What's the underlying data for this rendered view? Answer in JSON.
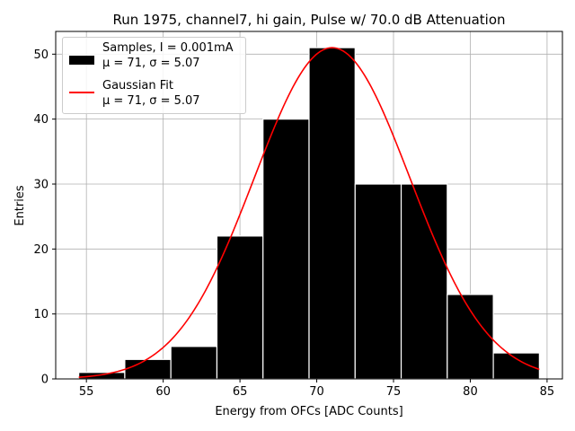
{
  "chart_data": {
    "type": "bar",
    "title": "Run 1975, channel7, hi gain, Pulse w/ 70.0 dB Attenuation",
    "xlabel": "Energy from OFCs [ADC Counts]",
    "ylabel": "Entries",
    "xlim": [
      53,
      86
    ],
    "ylim": [
      0,
      53.5
    ],
    "xticks": [
      55,
      60,
      65,
      70,
      75,
      80,
      85
    ],
    "yticks": [
      0,
      10,
      20,
      30,
      40,
      50
    ],
    "grid": true,
    "bins": [
      {
        "left": 54.5,
        "right": 57.5,
        "value": 1
      },
      {
        "left": 57.5,
        "right": 60.5,
        "value": 3
      },
      {
        "left": 60.5,
        "right": 63.5,
        "value": 5
      },
      {
        "left": 63.5,
        "right": 66.5,
        "value": 22
      },
      {
        "left": 66.5,
        "right": 69.5,
        "value": 40
      },
      {
        "left": 69.5,
        "right": 72.5,
        "value": 51
      },
      {
        "left": 72.5,
        "right": 75.5,
        "value": 30
      },
      {
        "left": 75.5,
        "right": 78.5,
        "value": 30
      },
      {
        "left": 78.5,
        "right": 81.5,
        "value": 13
      },
      {
        "left": 81.5,
        "right": 84.5,
        "value": 4
      }
    ],
    "fit": {
      "type": "gaussian",
      "mu": 71,
      "sigma": 5.07,
      "amplitude": 51,
      "x_range": [
        54.5,
        84.5
      ],
      "color": "#ff0000"
    },
    "legend": {
      "location": "upper-left",
      "entries": [
        {
          "label_line1": "Samples, I = 0.001mA",
          "label_line2": "μ = 71, σ = 5.07",
          "style": "bar",
          "color": "#000000"
        },
        {
          "label_line1": "Gaussian Fit",
          "label_line2": "μ = 71, σ = 5.07",
          "style": "line",
          "color": "#ff0000"
        }
      ]
    }
  }
}
